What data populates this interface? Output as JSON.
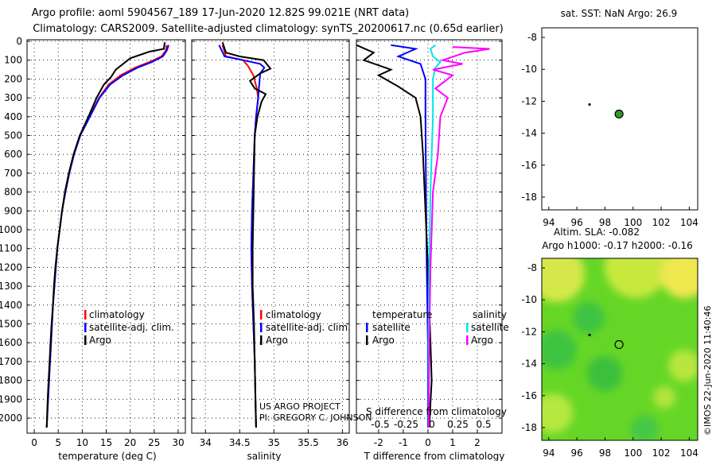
{
  "header": {
    "line1": "Argo profile: aoml 5904567_189 17-Jun-2020 12.82S 99.021E (NRT data)",
    "line2": "Climatology: CARS2009. Satellite-adjusted climatology: synTS_20200617.nc (0.65d earlier)"
  },
  "credit": "US ARGO PROJECT",
  "pi": "PI: GREGORY C. JOHNSON",
  "watermark": "©IMOS 22-Jun-2020 11:40:46",
  "colors": {
    "clim": "#ff0000",
    "sat": "#0000ff",
    "argo": "#000000",
    "sat_s": "#00e5ee",
    "argo_s": "#ff00ff",
    "float": "#2e9a2e"
  },
  "chart_data": [
    {
      "id": "temperature",
      "type": "line",
      "xlabel": "temperature (deg C)",
      "xlim": [
        -1.5,
        31.5
      ],
      "xticks": [
        0,
        5,
        10,
        15,
        20,
        25,
        30
      ],
      "ylim": [
        2080,
        0
      ],
      "yticks": [
        0,
        100,
        200,
        300,
        400,
        500,
        600,
        700,
        800,
        900,
        1000,
        1100,
        1200,
        1300,
        1400,
        1500,
        1600,
        1700,
        1800,
        1900,
        2000
      ],
      "legend": [
        "climatology",
        "satellite-adj. clim.",
        "Argo"
      ],
      "series": [
        {
          "name": "climatology",
          "color": "#ff0000",
          "points": [
            [
              27.6,
              20
            ],
            [
              27.4,
              50
            ],
            [
              26.5,
              80
            ],
            [
              24,
              110
            ],
            [
              21,
              140
            ],
            [
              18,
              180
            ],
            [
              15.5,
              230
            ],
            [
              13.5,
              300
            ],
            [
              11.5,
              400
            ],
            [
              9.5,
              500
            ],
            [
              8.2,
              600
            ],
            [
              7.3,
              700
            ],
            [
              6.5,
              800
            ],
            [
              5.8,
              900
            ],
            [
              5.3,
              1000
            ],
            [
              4.8,
              1100
            ],
            [
              4.5,
              1200
            ],
            [
              4.2,
              1300
            ],
            [
              3.9,
              1400
            ],
            [
              3.7,
              1500
            ],
            [
              3.5,
              1600
            ],
            [
              3.3,
              1700
            ],
            [
              3.1,
              1800
            ],
            [
              2.9,
              1900
            ],
            [
              2.6,
              2050
            ]
          ]
        },
        {
          "name": "satellite-adj. clim.",
          "color": "#0000ff",
          "points": [
            [
              28,
              20
            ],
            [
              27.6,
              50
            ],
            [
              26.8,
              80
            ],
            [
              24.5,
              110
            ],
            [
              21.5,
              140
            ],
            [
              18.5,
              180
            ],
            [
              15.8,
              230
            ],
            [
              13.6,
              300
            ],
            [
              11.6,
              400
            ],
            [
              9.6,
              500
            ],
            [
              8.3,
              600
            ],
            [
              7.3,
              700
            ],
            [
              6.5,
              800
            ],
            [
              5.8,
              900
            ],
            [
              5.3,
              1000
            ],
            [
              4.8,
              1100
            ],
            [
              4.5,
              1200
            ],
            [
              4.2,
              1300
            ],
            [
              3.9,
              1400
            ],
            [
              3.7,
              1500
            ],
            [
              3.5,
              1600
            ],
            [
              3.3,
              1700
            ],
            [
              3.1,
              1800
            ],
            [
              2.9,
              1900
            ],
            [
              2.6,
              2050
            ]
          ]
        },
        {
          "name": "Argo",
          "color": "#000000",
          "points": [
            [
              27.2,
              5
            ],
            [
              27,
              40
            ],
            [
              24,
              55
            ],
            [
              20,
              90
            ],
            [
              17,
              150
            ],
            [
              16,
              190
            ],
            [
              14.5,
              230
            ],
            [
              13,
              300
            ],
            [
              11.3,
              400
            ],
            [
              9.5,
              500
            ],
            [
              8.2,
              600
            ],
            [
              7.2,
              700
            ],
            [
              6.4,
              800
            ],
            [
              5.8,
              900
            ],
            [
              5.3,
              1000
            ],
            [
              4.8,
              1100
            ],
            [
              4.4,
              1200
            ],
            [
              4.1,
              1300
            ],
            [
              3.9,
              1400
            ],
            [
              3.6,
              1500
            ],
            [
              3.4,
              1600
            ],
            [
              3.2,
              1700
            ],
            [
              3,
              1800
            ],
            [
              2.8,
              1900
            ],
            [
              2.6,
              2050
            ]
          ]
        }
      ]
    },
    {
      "id": "salinity",
      "type": "line",
      "xlabel": "salinity",
      "xlim": [
        33.8,
        36.1
      ],
      "xticks": [
        34,
        34.5,
        35,
        35.5,
        36
      ],
      "ylim": [
        2080,
        0
      ],
      "legend": [
        "climatology",
        "satellite-adj. clim.",
        "Argo"
      ],
      "series": [
        {
          "name": "climatology",
          "color": "#ff0000",
          "points": [
            [
              34.25,
              20
            ],
            [
              34.3,
              80
            ],
            [
              34.55,
              100
            ],
            [
              34.62,
              130
            ],
            [
              34.7,
              180
            ],
            [
              34.75,
              250
            ],
            [
              34.77,
              300
            ],
            [
              34.74,
              400
            ],
            [
              34.72,
              500
            ],
            [
              34.7,
              700
            ],
            [
              34.68,
              900
            ],
            [
              34.67,
              1100
            ],
            [
              34.68,
              1300
            ],
            [
              34.7,
              1500
            ],
            [
              34.72,
              1700
            ],
            [
              34.73,
              1900
            ],
            [
              34.74,
              2050
            ]
          ]
        },
        {
          "name": "satellite-adj. clim.",
          "color": "#0000ff",
          "points": [
            [
              34.2,
              20
            ],
            [
              34.28,
              80
            ],
            [
              34.55,
              100
            ],
            [
              34.8,
              120
            ],
            [
              34.86,
              140
            ],
            [
              34.8,
              170
            ],
            [
              34.78,
              250
            ],
            [
              34.77,
              300
            ],
            [
              34.74,
              400
            ],
            [
              34.72,
              500
            ],
            [
              34.7,
              700
            ],
            [
              34.68,
              900
            ],
            [
              34.67,
              1100
            ],
            [
              34.68,
              1300
            ],
            [
              34.7,
              1500
            ],
            [
              34.72,
              1700
            ],
            [
              34.73,
              1900
            ],
            [
              34.74,
              2050
            ]
          ]
        },
        {
          "name": "Argo",
          "color": "#000000",
          "points": [
            [
              34.25,
              5
            ],
            [
              34.3,
              60
            ],
            [
              34.5,
              80
            ],
            [
              34.85,
              100
            ],
            [
              34.95,
              145
            ],
            [
              34.8,
              170
            ],
            [
              34.65,
              210
            ],
            [
              34.72,
              250
            ],
            [
              34.88,
              280
            ],
            [
              34.82,
              320
            ],
            [
              34.76,
              400
            ],
            [
              34.72,
              500
            ],
            [
              34.71,
              700
            ],
            [
              34.7,
              900
            ],
            [
              34.69,
              1100
            ],
            [
              34.69,
              1300
            ],
            [
              34.71,
              1500
            ],
            [
              34.72,
              1700
            ],
            [
              34.73,
              1900
            ],
            [
              34.74,
              2050
            ]
          ]
        }
      ]
    },
    {
      "id": "difference",
      "type": "line",
      "xlabel": "T difference from climatology",
      "xlabel2": "S difference from climatology",
      "xlim": [
        -2.9,
        3
      ],
      "xticks": [
        -2,
        -1,
        0,
        1,
        2
      ],
      "xticks2": [
        -0.5,
        -0.25,
        0,
        0.25,
        0.5
      ],
      "ylim": [
        2080,
        0
      ],
      "legend_titles": [
        "temperature",
        "salinity"
      ],
      "legend": [
        "satellite",
        "Argo",
        "satellite",
        "Argo"
      ],
      "series": [
        {
          "name": "T satellite",
          "color": "#0000ff",
          "points": [
            [
              -1.5,
              20
            ],
            [
              -0.5,
              40
            ],
            [
              -1.2,
              80
            ],
            [
              -0.3,
              120
            ],
            [
              -0.1,
              200
            ],
            [
              -0.1,
              400
            ],
            [
              -0.08,
              800
            ],
            [
              -0.05,
              1200
            ],
            [
              0,
              1600
            ],
            [
              0,
              2050
            ]
          ]
        },
        {
          "name": "T Argo",
          "color": "#000000",
          "points": [
            [
              -2.9,
              20
            ],
            [
              -2.2,
              60
            ],
            [
              -2.6,
              100
            ],
            [
              -1.5,
              150
            ],
            [
              -2,
              180
            ],
            [
              -1.2,
              240
            ],
            [
              -0.5,
              300
            ],
            [
              -0.3,
              400
            ],
            [
              -0.2,
              600
            ],
            [
              -0.1,
              900
            ],
            [
              0,
              1200
            ],
            [
              0.1,
              1600
            ],
            [
              0.15,
              1800
            ],
            [
              0.05,
              2050
            ]
          ]
        },
        {
          "name": "S satellite",
          "color": "#00e5ee",
          "points": [
            [
              0.3,
              20
            ],
            [
              0.1,
              40
            ],
            [
              0.2,
              80
            ],
            [
              0.5,
              110
            ],
            [
              0.3,
              140
            ],
            [
              0.2,
              200
            ],
            [
              0.2,
              400
            ],
            [
              0.15,
              600
            ],
            [
              0.1,
              800
            ],
            [
              0.05,
              1200
            ],
            [
              0.02,
              1600
            ],
            [
              0.02,
              2050
            ]
          ]
        },
        {
          "name": "S Argo",
          "color": "#ff00ff",
          "points": [
            [
              1,
              30
            ],
            [
              2.5,
              40
            ],
            [
              1.5,
              60
            ],
            [
              0.6,
              100
            ],
            [
              1.4,
              120
            ],
            [
              0.2,
              150
            ],
            [
              1,
              180
            ],
            [
              0.3,
              250
            ],
            [
              0.8,
              300
            ],
            [
              0.5,
              400
            ],
            [
              0.4,
              600
            ],
            [
              0.2,
              800
            ],
            [
              0.1,
              1200
            ],
            [
              0.05,
              1600
            ],
            [
              0.03,
              2050
            ]
          ]
        }
      ]
    },
    {
      "id": "sst-map",
      "type": "scatter",
      "title": "sat. SST: NaN Argo: 26.9",
      "xlim": [
        93.5,
        104.6
      ],
      "xticks": [
        94,
        96,
        98,
        100,
        102,
        104
      ],
      "ylim": [
        -18.8,
        -7.4
      ],
      "yticks": [
        -8,
        -10,
        -12,
        -14,
        -16,
        -18
      ],
      "points": [
        {
          "x": 99.0,
          "y": -12.8
        },
        {
          "x": 96.9,
          "y": -12.2
        }
      ]
    },
    {
      "id": "sla-map",
      "type": "heatmap",
      "title": "Altim. SLA: -0.082",
      "subtitle": "Argo h1000: -0.17 h2000: -0.16",
      "xlim": [
        93.5,
        104.6
      ],
      "xticks": [
        94,
        96,
        98,
        100,
        102,
        104
      ],
      "ylim": [
        -18.8,
        -7.4
      ],
      "yticks": [
        -8,
        -10,
        -12,
        -14,
        -16,
        -18
      ],
      "points": [
        {
          "x": 99.0,
          "y": -12.8
        },
        {
          "x": 96.9,
          "y": -12.2
        }
      ]
    }
  ]
}
